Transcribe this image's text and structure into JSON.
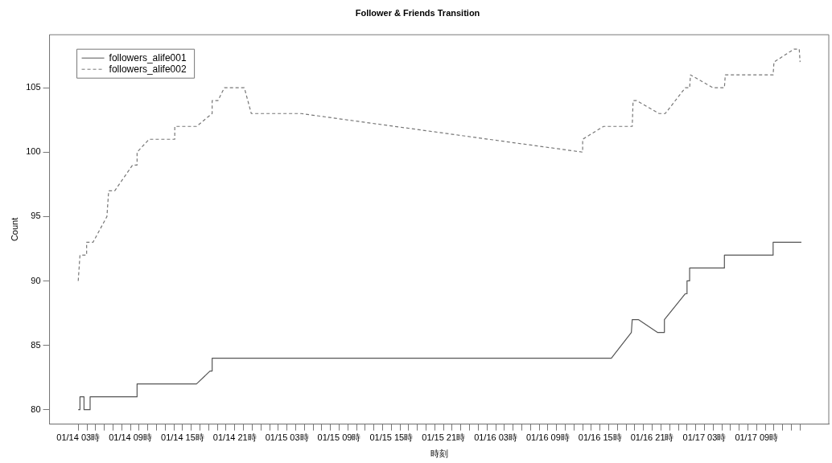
{
  "chart_data": {
    "type": "line",
    "title": "Follower & Friends Transition",
    "xlabel": "時刻",
    "ylabel": "Count",
    "xlim": [
      "--01-13T23:42",
      "--01-17T17:18"
    ],
    "ylim": [
      78.88,
      109.12
    ],
    "yticks": [
      80,
      85,
      90,
      95,
      100,
      105
    ],
    "xticks": [
      {
        "value": "--01-14T03:00",
        "label": "01/14 03時"
      },
      {
        "value": "--01-14T04:00",
        "label": null
      },
      {
        "value": "--01-14T05:00",
        "label": null
      },
      {
        "value": "--01-14T06:00",
        "label": null
      },
      {
        "value": "--01-14T07:00",
        "label": null
      },
      {
        "value": "--01-14T08:00",
        "label": null
      },
      {
        "value": "--01-14T09:00",
        "label": "01/14 09時"
      },
      {
        "value": "--01-14T10:00",
        "label": null
      },
      {
        "value": "--01-14T11:00",
        "label": null
      },
      {
        "value": "--01-14T12:00",
        "label": null
      },
      {
        "value": "--01-14T13:00",
        "label": null
      },
      {
        "value": "--01-14T14:00",
        "label": null
      },
      {
        "value": "--01-14T15:00",
        "label": "01/14 15時"
      },
      {
        "value": "--01-14T16:00",
        "label": null
      },
      {
        "value": "--01-14T17:00",
        "label": null
      },
      {
        "value": "--01-14T18:00",
        "label": null
      },
      {
        "value": "--01-14T19:00",
        "label": null
      },
      {
        "value": "--01-14T20:00",
        "label": null
      },
      {
        "value": "--01-14T21:00",
        "label": "01/14 21時"
      },
      {
        "value": "--01-14T22:00",
        "label": null
      },
      {
        "value": "--01-14T23:00",
        "label": null
      },
      {
        "value": "--01-15T00:00",
        "label": null
      },
      {
        "value": "--01-15T01:00",
        "label": null
      },
      {
        "value": "--01-15T02:00",
        "label": null
      },
      {
        "value": "--01-15T03:00",
        "label": "01/15 03時"
      },
      {
        "value": "--01-15T04:00",
        "label": null
      },
      {
        "value": "--01-15T05:00",
        "label": null
      },
      {
        "value": "--01-15T06:00",
        "label": null
      },
      {
        "value": "--01-15T07:00",
        "label": null
      },
      {
        "value": "--01-15T08:00",
        "label": null
      },
      {
        "value": "--01-15T09:00",
        "label": "01/15 09時"
      },
      {
        "value": "--01-15T10:00",
        "label": null
      },
      {
        "value": "--01-15T11:00",
        "label": null
      },
      {
        "value": "--01-15T12:00",
        "label": null
      },
      {
        "value": "--01-15T13:00",
        "label": null
      },
      {
        "value": "--01-15T14:00",
        "label": null
      },
      {
        "value": "--01-15T15:00",
        "label": "01/15 15時"
      },
      {
        "value": "--01-15T16:00",
        "label": null
      },
      {
        "value": "--01-15T17:00",
        "label": null
      },
      {
        "value": "--01-15T18:00",
        "label": null
      },
      {
        "value": "--01-15T19:00",
        "label": null
      },
      {
        "value": "--01-15T20:00",
        "label": null
      },
      {
        "value": "--01-15T21:00",
        "label": "01/15 21時"
      },
      {
        "value": "--01-15T22:00",
        "label": null
      },
      {
        "value": "--01-15T23:00",
        "label": null
      },
      {
        "value": "--01-16T00:00",
        "label": null
      },
      {
        "value": "--01-16T01:00",
        "label": null
      },
      {
        "value": "--01-16T02:00",
        "label": null
      },
      {
        "value": "--01-16T03:00",
        "label": "01/16 03時"
      },
      {
        "value": "--01-16T04:00",
        "label": null
      },
      {
        "value": "--01-16T05:00",
        "label": null
      },
      {
        "value": "--01-16T06:00",
        "label": null
      },
      {
        "value": "--01-16T07:00",
        "label": null
      },
      {
        "value": "--01-16T08:00",
        "label": null
      },
      {
        "value": "--01-16T09:00",
        "label": "01/16 09時"
      },
      {
        "value": "--01-16T10:00",
        "label": null
      },
      {
        "value": "--01-16T11:00",
        "label": null
      },
      {
        "value": "--01-16T12:00",
        "label": null
      },
      {
        "value": "--01-16T13:00",
        "label": null
      },
      {
        "value": "--01-16T14:00",
        "label": null
      },
      {
        "value": "--01-16T15:00",
        "label": "01/16 15時"
      },
      {
        "value": "--01-16T16:00",
        "label": null
      },
      {
        "value": "--01-16T17:00",
        "label": null
      },
      {
        "value": "--01-16T18:00",
        "label": null
      },
      {
        "value": "--01-16T19:00",
        "label": null
      },
      {
        "value": "--01-16T20:00",
        "label": null
      },
      {
        "value": "--01-16T21:00",
        "label": "01/16 21時"
      },
      {
        "value": "--01-16T22:00",
        "label": null
      },
      {
        "value": "--01-16T23:00",
        "label": null
      },
      {
        "value": "--01-17T00:00",
        "label": null
      },
      {
        "value": "--01-17T01:00",
        "label": null
      },
      {
        "value": "--01-17T02:00",
        "label": null
      },
      {
        "value": "--01-17T03:00",
        "label": "01/17 03時"
      },
      {
        "value": "--01-17T04:00",
        "label": null
      },
      {
        "value": "--01-17T05:00",
        "label": null
      },
      {
        "value": "--01-17T06:00",
        "label": null
      },
      {
        "value": "--01-17T07:00",
        "label": null
      },
      {
        "value": "--01-17T08:00",
        "label": null
      },
      {
        "value": "--01-17T09:00",
        "label": "01/17 09時"
      },
      {
        "value": "--01-17T10:00",
        "label": null
      },
      {
        "value": "--01-17T11:00",
        "label": null
      },
      {
        "value": "--01-17T12:00",
        "label": null
      },
      {
        "value": "--01-17T13:00",
        "label": null
      },
      {
        "value": "--01-17T14:00",
        "label": null
      }
    ],
    "legend": "top left",
    "series": [
      {
        "name": "followers_alife001",
        "color": "#555555",
        "line_style": "solid",
        "x": [
          "--01-14T03:00",
          "--01-14T03:12",
          "--01-14T03:12",
          "--01-14T03:40",
          "--01-14T03:40",
          "--01-14T04:22",
          "--01-14T04:22",
          "--01-14T09:46",
          "--01-14T09:46",
          "--01-14T16:36",
          "--01-14T18:09",
          "--01-14T18:24",
          "--01-14T18:24",
          "--01-16T16:18",
          "--01-16T18:36",
          "--01-16T18:42",
          "--01-16T19:24",
          "--01-16T21:36",
          "--01-16T22:24",
          "--01-16T22:24",
          "--01-17T00:48",
          "--01-17T01:00",
          "--01-17T01:00",
          "--01-17T01:18",
          "--01-17T01:18",
          "--01-17T05:18",
          "--01-17T05:18",
          "--01-17T10:54",
          "--01-17T10:54",
          "--01-17T14:09"
        ],
        "values": [
          80,
          80,
          81,
          81,
          80,
          80,
          81,
          81,
          82,
          82,
          83,
          83,
          84,
          84,
          86,
          87,
          87,
          86,
          86,
          87,
          89,
          89,
          90,
          90,
          91,
          91,
          92,
          92,
          93,
          93
        ]
      },
      {
        "name": "followers_alife002",
        "color": "#777777",
        "line_style": "dashed",
        "x": [
          "--01-14T03:00",
          "--01-14T03:12",
          "--01-14T03:58",
          "--01-14T03:58",
          "--01-14T04:42",
          "--01-14T06:18",
          "--01-14T06:24",
          "--01-14T06:30",
          "--01-14T07:12",
          "--01-14T09:15",
          "--01-14T09:46",
          "--01-14T09:46",
          "--01-14T11:09",
          "--01-14T14:06",
          "--01-14T14:06",
          "--01-14T16:36",
          "--01-14T18:24",
          "--01-14T18:24",
          "--01-14T19:04",
          "--01-14T19:48",
          "--01-14T22:06",
          "--01-14T22:54",
          "--01-15T04:36",
          "--01-16T13:00",
          "--01-16T13:00",
          "--01-16T15:24",
          "--01-16T18:42",
          "--01-16T18:48",
          "--01-16T19:12",
          "--01-16T21:48",
          "--01-16T22:30",
          "--01-17T00:48",
          "--01-17T01:18",
          "--01-17T01:24",
          "--01-17T04:00",
          "--01-17T05:18",
          "--01-17T05:24",
          "--01-17T10:54",
          "--01-17T11:00",
          "--01-17T13:18",
          "--01-17T13:54",
          "--01-17T14:00"
        ],
        "values": [
          90,
          92,
          92,
          93,
          93,
          95,
          96,
          97,
          97,
          99,
          99,
          100,
          101,
          101,
          102,
          102,
          103,
          104,
          104,
          105,
          105,
          103,
          103,
          100,
          101,
          102,
          102,
          104,
          104,
          103,
          103,
          105,
          105,
          106,
          105,
          105,
          106,
          106,
          107,
          108,
          108,
          107
        ]
      }
    ]
  }
}
